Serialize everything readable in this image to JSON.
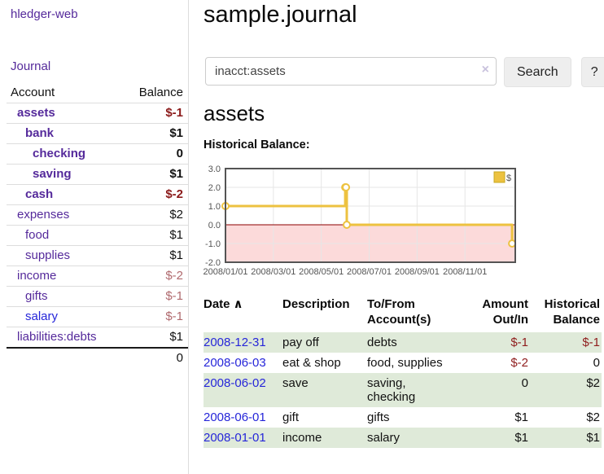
{
  "app": {
    "brand": "hledger-web"
  },
  "sidebar": {
    "journal_label": "Journal",
    "table": {
      "account_header": "Account",
      "balance_header": "Balance",
      "accounts": [
        {
          "name": "assets",
          "balance": "$-1"
        },
        {
          "name": "bank",
          "balance": "$1"
        },
        {
          "name": "checking",
          "balance": "0"
        },
        {
          "name": "saving",
          "balance": "$1"
        },
        {
          "name": "cash",
          "balance": "$-2"
        },
        {
          "name": "expenses",
          "balance": "$2"
        },
        {
          "name": "food",
          "balance": "$1"
        },
        {
          "name": "supplies",
          "balance": "$1"
        },
        {
          "name": "income",
          "balance": "$-2"
        },
        {
          "name": "gifts",
          "balance": "$-1"
        },
        {
          "name": "salary",
          "balance": "$-1"
        },
        {
          "name": "liabilities:debts",
          "balance": "$1"
        }
      ],
      "total": "0"
    }
  },
  "main": {
    "title": "sample.journal",
    "search": {
      "query": "inacct:assets",
      "clear_icon": "×",
      "button_label": "Search",
      "help_label": "?"
    },
    "account_heading": "assets",
    "chart_heading": "Historical Balance:"
  },
  "chart_data": {
    "type": "line",
    "title": "Historical Balance",
    "style": "step",
    "series": [
      {
        "name": "$",
        "color": "#edc240",
        "points": [
          [
            "2008-01-01",
            1
          ],
          [
            "2008-06-01",
            2
          ],
          [
            "2008-06-02",
            2
          ],
          [
            "2008-06-03",
            0
          ],
          [
            "2008-12-31",
            -1
          ]
        ]
      }
    ],
    "x_ticks": [
      {
        "label": "2008/01/01",
        "m": 0
      },
      {
        "label": "2008/03/01",
        "m": 2
      },
      {
        "label": "2008/05/01",
        "m": 4
      },
      {
        "label": "2008/07/01",
        "m": 6
      },
      {
        "label": "2008/09/01",
        "m": 8
      },
      {
        "label": "2008/11/01",
        "m": 10
      }
    ],
    "y_ticks": [
      3,
      2,
      1,
      0,
      -1,
      -2
    ],
    "xlim": [
      0,
      12.1
    ],
    "ylim": [
      -2,
      3
    ],
    "grid": true,
    "legend": {
      "label": "$",
      "position": "top-right"
    },
    "zero_line_color": "#8b0000",
    "negative_region_color": "#fcdada",
    "border_color": "#545454",
    "marker_fill": "#ffffff"
  },
  "register": {
    "headers": {
      "date": "Date",
      "sort_icon": "∧",
      "description": "Description",
      "accounts": "To/From Account(s)",
      "amount": "Amount Out/In",
      "balance": "Historical Balance"
    },
    "rows": [
      {
        "date": "2008-12-31",
        "description": "pay off",
        "accounts": "debts",
        "amount": "$-1",
        "balance": "$-1"
      },
      {
        "date": "2008-06-03",
        "description": "eat & shop",
        "accounts": "food, supplies",
        "amount": "$-2",
        "balance": "0"
      },
      {
        "date": "2008-06-02",
        "description": "save",
        "accounts": "saving, checking",
        "amount": "0",
        "balance": "$2"
      },
      {
        "date": "2008-06-01",
        "description": "gift",
        "accounts": "gifts",
        "amount": "$1",
        "balance": "$2"
      },
      {
        "date": "2008-01-01",
        "description": "income",
        "accounts": "salary",
        "amount": "$1",
        "balance": "$1"
      }
    ]
  }
}
